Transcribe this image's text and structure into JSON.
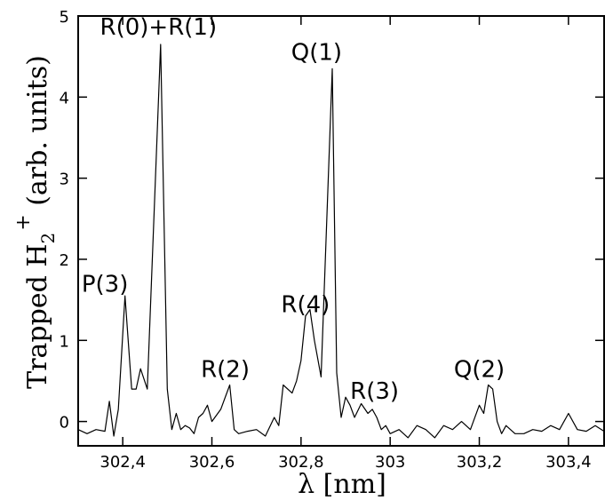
{
  "chart_data": {
    "type": "line",
    "title": "",
    "xlabel": "λ [nm]",
    "ylabel": {
      "main": "Trapped H",
      "subscript": "2",
      "superscript": "+",
      "suffix": " (arb. units)"
    },
    "xlim": [
      302.3,
      303.48
    ],
    "ylim": [
      -0.3,
      5
    ],
    "grid": false,
    "legend": "none",
    "line_color": "#000000",
    "x_ticks": [
      {
        "value": 302.4,
        "label": "302,4"
      },
      {
        "value": 302.6,
        "label": "302,6"
      },
      {
        "value": 302.8,
        "label": "302,8"
      },
      {
        "value": 303.0,
        "label": "303"
      },
      {
        "value": 303.2,
        "label": "303,2"
      },
      {
        "value": 303.4,
        "label": "303,4"
      }
    ],
    "y_ticks": [
      {
        "value": 0,
        "label": "0"
      },
      {
        "value": 1,
        "label": "1"
      },
      {
        "value": 2,
        "label": "2"
      },
      {
        "value": 3,
        "label": "3"
      },
      {
        "value": 4,
        "label": "4"
      },
      {
        "value": 5,
        "label": "5"
      }
    ],
    "series": [
      {
        "x": [
          302.3,
          302.32,
          302.34,
          302.36,
          302.37,
          302.38,
          302.39,
          302.405,
          302.42,
          302.43,
          302.44,
          302.455,
          302.485,
          302.5,
          302.51,
          302.52,
          302.53,
          302.54,
          302.55,
          302.56,
          302.57,
          302.58,
          302.59,
          302.6,
          302.62,
          302.64,
          302.65,
          302.66,
          302.68,
          302.7,
          302.72,
          302.74,
          302.75,
          302.76,
          302.78,
          302.79,
          302.8,
          302.81,
          302.82,
          302.83,
          302.845,
          302.87,
          302.88,
          302.89,
          302.9,
          302.91,
          302.92,
          302.935,
          302.95,
          302.96,
          302.97,
          302.98,
          302.99,
          303.0,
          303.02,
          303.04,
          303.06,
          303.08,
          303.1,
          303.12,
          303.14,
          303.16,
          303.18,
          303.2,
          303.21,
          303.22,
          303.23,
          303.24,
          303.25,
          303.26,
          303.28,
          303.3,
          303.32,
          303.34,
          303.36,
          303.38,
          303.4,
          303.42,
          303.44,
          303.46,
          303.48
        ],
        "y": [
          -0.1,
          -0.15,
          -0.1,
          -0.12,
          0.25,
          -0.18,
          0.15,
          1.55,
          0.4,
          0.4,
          0.65,
          0.4,
          4.65,
          0.4,
          -0.1,
          0.1,
          -0.1,
          -0.05,
          -0.08,
          -0.15,
          0.05,
          0.1,
          0.2,
          0.0,
          0.15,
          0.45,
          -0.1,
          -0.15,
          -0.12,
          -0.1,
          -0.18,
          0.05,
          -0.05,
          0.45,
          0.35,
          0.5,
          0.75,
          1.3,
          1.38,
          1.0,
          0.55,
          4.35,
          0.6,
          0.05,
          0.3,
          0.2,
          0.05,
          0.22,
          0.1,
          0.15,
          0.05,
          -0.1,
          -0.05,
          -0.15,
          -0.1,
          -0.2,
          -0.05,
          -0.1,
          -0.2,
          -0.05,
          -0.1,
          0.0,
          -0.1,
          0.2,
          0.1,
          0.45,
          0.4,
          0.0,
          -0.15,
          -0.05,
          -0.15,
          -0.15,
          -0.1,
          -0.12,
          -0.05,
          -0.1,
          0.1,
          -0.1,
          -0.12,
          -0.05,
          -0.12
        ]
      }
    ],
    "annotations": [
      {
        "text": "R(0)+R(1)",
        "x": 302.48,
        "y": 4.77
      },
      {
        "text": "Q(1)",
        "x": 302.835,
        "y": 4.46
      },
      {
        "text": "P(3)",
        "x": 302.36,
        "y": 1.6
      },
      {
        "text": "R(4)",
        "x": 302.81,
        "y": 1.35
      },
      {
        "text": "R(2)",
        "x": 302.63,
        "y": 0.55
      },
      {
        "text": "R(3)",
        "x": 302.965,
        "y": 0.28
      },
      {
        "text": "Q(2)",
        "x": 303.2,
        "y": 0.55
      }
    ]
  }
}
